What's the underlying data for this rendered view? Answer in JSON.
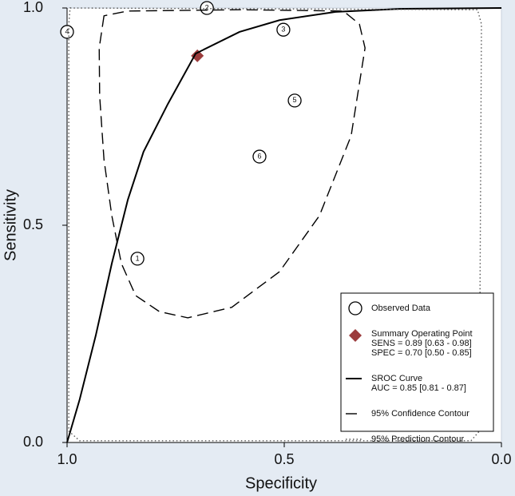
{
  "chart_data": {
    "type": "scatter",
    "xlabel": "Specificity",
    "ylabel": "Sensitivity",
    "xlim": [
      1,
      0
    ],
    "ylim": [
      0,
      1
    ],
    "xticks": [
      {
        "value": 1,
        "label": "1.0"
      },
      0.5,
      {
        "value": 0,
        "label": "0.0"
      }
    ],
    "yticks": [
      {
        "value": 0,
        "label": "0.0"
      },
      0.5,
      {
        "value": 1,
        "label": "1.0"
      }
    ],
    "legend": "lower right",
    "series": [
      {
        "name": "Observed Data",
        "mark": "circle",
        "color": "#000000",
        "x": [
          0.838,
          0.678,
          0.502,
          1.0,
          0.476,
          0.557
        ],
        "y": [
          0.423,
          1.0,
          0.95,
          0.945,
          0.787,
          0.658
        ],
        "labels": [
          "1",
          "2",
          "3",
          "4",
          "5",
          "6"
        ]
      },
      {
        "name": "Summary Operating Point",
        "mark": "diamond",
        "color": "#9b3b3c",
        "details": [
          "SENS = 0.89 [0.63 - 0.98]",
          "SPEC = 0.70 [0.50 - 0.85]"
        ],
        "x": [
          0.7
        ],
        "y": [
          0.89
        ]
      },
      {
        "name": "SROC Curve",
        "mark": "solid",
        "color": "#000000",
        "details": [
          "AUC = 0.85 [0.81 - 0.87]"
        ],
        "x": [
          1.0,
          0.971,
          0.934,
          0.897,
          0.86,
          0.824,
          0.768,
          0.704,
          0.603,
          0.511,
          0.382,
          0.235,
          0.0
        ],
        "y": [
          0.0,
          0.099,
          0.246,
          0.412,
          0.559,
          0.669,
          0.779,
          0.895,
          0.945,
          0.972,
          0.991,
          0.998,
          1.0
        ]
      },
      {
        "name": "95% Confidence Contour",
        "mark": "dashed",
        "color": "#000000",
        "x": [
          0.915,
          0.926,
          0.925,
          0.915,
          0.897,
          0.875,
          0.842,
          0.787,
          0.722,
          0.621,
          0.511,
          0.419,
          0.346,
          0.314,
          0.327,
          0.364,
          0.603,
          0.86
        ],
        "y": [
          0.982,
          0.908,
          0.798,
          0.651,
          0.522,
          0.412,
          0.338,
          0.301,
          0.287,
          0.311,
          0.393,
          0.522,
          0.706,
          0.908,
          0.963,
          0.993,
          0.996,
          0.993
        ]
      },
      {
        "name": "95% Prediction Contour",
        "mark": "dotted",
        "color": "#555555",
        "x": [
          0.993,
          0.055,
          0.046,
          0.051,
          0.07,
          0.971,
          0.996,
          0.996
        ],
        "y": [
          1.0,
          0.996,
          0.963,
          0.026,
          0.004,
          0.004,
          0.026,
          0.963
        ]
      }
    ]
  }
}
